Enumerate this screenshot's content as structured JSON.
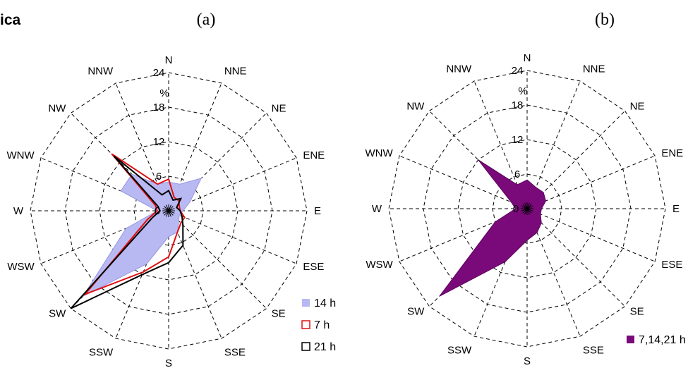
{
  "corner_label": "ica",
  "chart_data": [
    {
      "type": "radar",
      "panel_label": "(a)",
      "directions": [
        "N",
        "NNE",
        "NE",
        "ENE",
        "E",
        "ESE",
        "SE",
        "SSE",
        "S",
        "SSW",
        "SW",
        "WSW",
        "W",
        "WNW",
        "NW",
        "NNW"
      ],
      "radial_ticks": [
        "0",
        "6",
        "12",
        "18",
        "24"
      ],
      "unit_label": "%",
      "rmax": 24,
      "series": [
        {
          "name": "14 h",
          "style": "filled",
          "color": "#b8b8f2",
          "edge": "#9898e0",
          "values": [
            5,
            5,
            8,
            4,
            2.5,
            2,
            2.5,
            4,
            4.5,
            10,
            21,
            8,
            2,
            9,
            9,
            5
          ]
        },
        {
          "name": "7 h",
          "style": "outline",
          "color": "#e01010",
          "values": [
            5.5,
            2.5,
            2.5,
            2,
            2,
            3,
            3,
            4,
            8,
            11.5,
            20.5,
            4,
            2,
            2.5,
            14,
            5
          ]
        },
        {
          "name": "21 h",
          "style": "outline",
          "color": "#000000",
          "values": [
            3.5,
            2,
            3,
            1.5,
            2,
            2.5,
            3.5,
            6.5,
            9,
            12,
            24,
            3,
            1.5,
            2,
            13.5,
            3
          ]
        }
      ]
    },
    {
      "type": "radar",
      "panel_label": "(b)",
      "directions": [
        "N",
        "NNE",
        "NE",
        "ENE",
        "E",
        "ESE",
        "SE",
        "SSE",
        "S",
        "SSW",
        "SW",
        "WSW",
        "W",
        "WNW",
        "NW",
        "NNW"
      ],
      "radial_ticks": [
        "0",
        "6",
        "12",
        "18",
        "24"
      ],
      "unit_label": "%",
      "rmax": 24,
      "series": [
        {
          "name": "7,14,21 h",
          "style": "filled",
          "color": "#7a0a7a",
          "edge": "#5a005a",
          "values": [
            5,
            4,
            4,
            3.5,
            2.5,
            2.5,
            3.5,
            4.5,
            5.5,
            10,
            21.5,
            6,
            2,
            3,
            12,
            4.5
          ]
        }
      ]
    }
  ]
}
